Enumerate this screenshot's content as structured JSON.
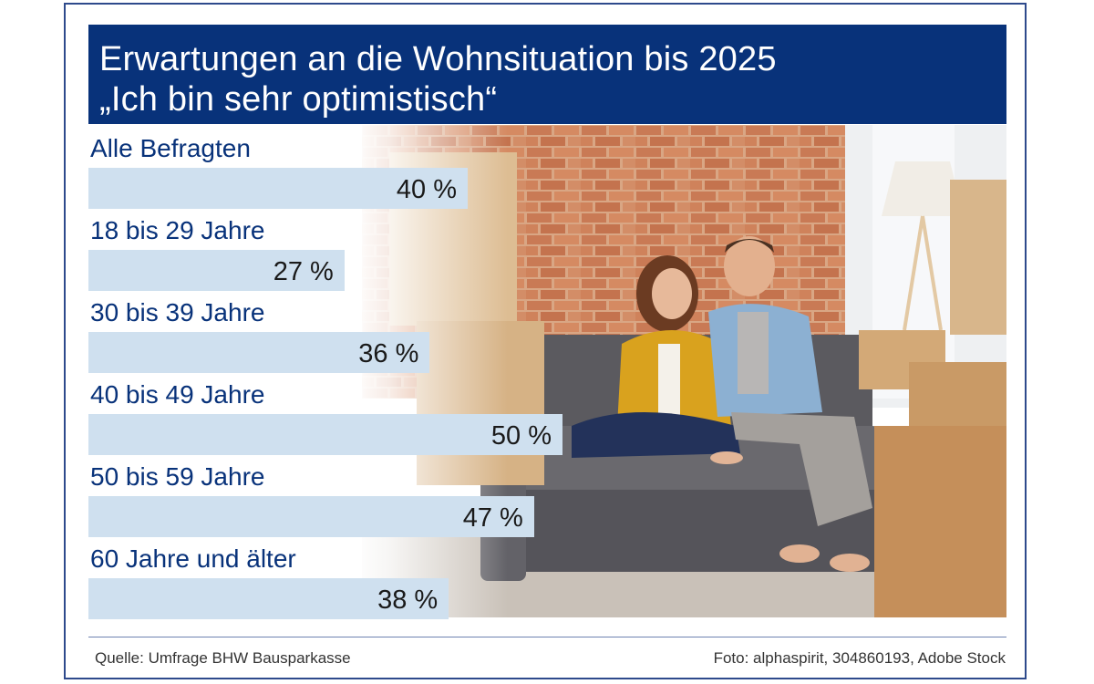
{
  "header": {
    "title": "Erwartungen an die Wohnsituation bis 2025",
    "subtitle": "„Ich bin sehr optimistisch“"
  },
  "chart_data": {
    "type": "bar",
    "orientation": "horizontal",
    "title": "Erwartungen an die Wohnsituation bis 2025",
    "subtitle": "„Ich bin sehr optimistisch“",
    "categories": [
      "Alle Befragten",
      "18 bis 29 Jahre",
      "30 bis 39 Jahre",
      "40 bis 49 Jahre",
      "50 bis 59 Jahre",
      "60 Jahre und älter"
    ],
    "values": [
      40,
      27,
      36,
      50,
      47,
      38
    ],
    "value_labels": [
      "40 %",
      "27 %",
      "36 %",
      "50 %",
      "47 %",
      "38 %"
    ],
    "unit": "%",
    "xlim": [
      0,
      100
    ],
    "grid": false,
    "legend": "none",
    "bar_color": "#cfe0ef",
    "label_color": "#08327a"
  },
  "footer": {
    "source": "Quelle: Umfrage BHW Bausparkasse",
    "photo_credit": "Foto: alphaspirit, 304860193, Adobe Stock"
  },
  "colors": {
    "header_bg": "#08327a",
    "frame": "#2e4a8c",
    "bar": "#cfe0ef"
  }
}
